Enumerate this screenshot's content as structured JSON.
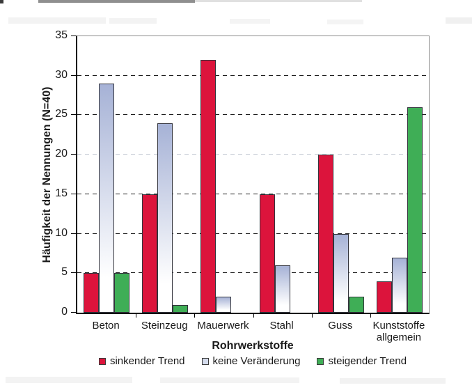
{
  "chart_data": {
    "type": "bar",
    "title": "",
    "xlabel": "Rohrwerkstoffe",
    "ylabel": "Häufigkeit der Nennungen (N=40)",
    "categories": [
      "Beton",
      "Steinzeug",
      "Mauerwerk",
      "Stahl",
      "Guss",
      "Kunststoffe allgemein"
    ],
    "series": [
      {
        "name": "sinkender Trend",
        "color": "#dc143c",
        "swatch": "#dc143c",
        "values": [
          5,
          15,
          32,
          15,
          20,
          4
        ]
      },
      {
        "name": "keine Veränderung",
        "color": "#a6b2d6",
        "gradient_to": "#ffffff",
        "swatch": "#d4dbec",
        "values": [
          29,
          24,
          2,
          6,
          10,
          7
        ]
      },
      {
        "name": "steigender Trend",
        "color": "#3fae56",
        "swatch": "#3fae56",
        "values": [
          5,
          1,
          0,
          0,
          2,
          26
        ]
      }
    ],
    "ylim": [
      0,
      35
    ],
    "ytick_step": 5,
    "yticks": [
      0,
      5,
      10,
      15,
      20,
      25,
      30,
      35
    ],
    "grid": "horizontal-dashed",
    "light_gridline_value": 20,
    "legend_position": "bottom",
    "colors": {
      "grid_dark": "#1a1a1a",
      "grid_light": "#c8cdd6",
      "axis": "#000000",
      "plot_border": "#8a8a8a",
      "text": "#1a1a1a",
      "background": "#ffffff"
    }
  }
}
